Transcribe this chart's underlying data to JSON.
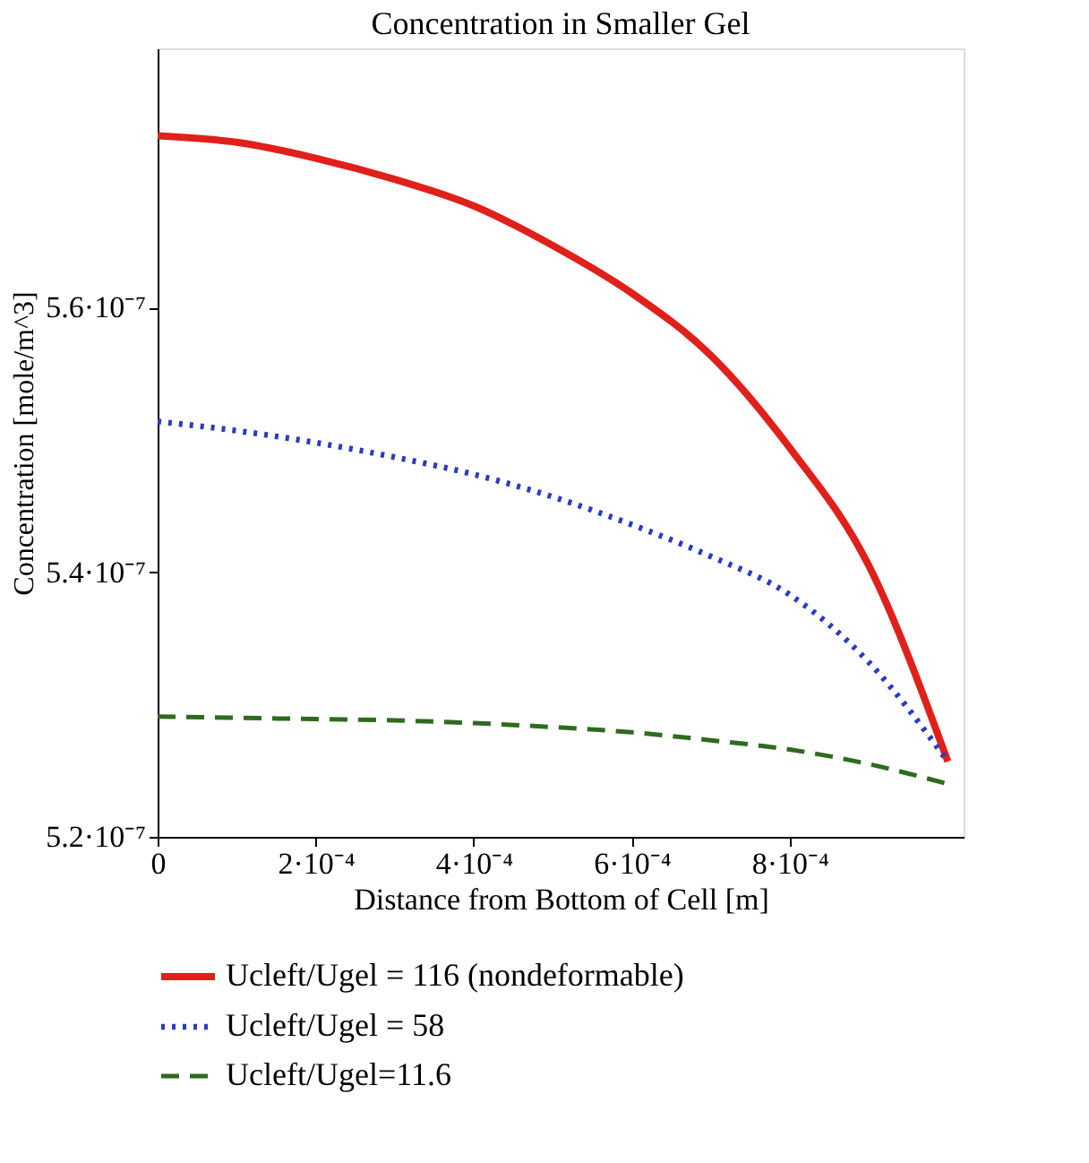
{
  "chart_data": {
    "type": "line",
    "title": "Concentration in Smaller Gel",
    "xlabel": "Distance from Bottom of Cell [m]",
    "ylabel": "Concentration [mole/m^3]",
    "xlim": [
      0,
      0.00102
    ],
    "ylim": [
      5.2e-07,
      5.796e-07
    ],
    "xticks": [
      0,
      {
        "value": 0.0002,
        "label": "2·10⁻⁴"
      },
      {
        "value": 0.0004,
        "label": "4·10⁻⁴"
      },
      {
        "value": 0.0006,
        "label": "6·10⁻⁴"
      },
      {
        "value": 0.0008,
        "label": "8·10⁻⁴"
      }
    ],
    "yticks": [
      {
        "value": 5.2e-07,
        "label": "5.2·10⁻⁷"
      },
      {
        "value": 5.4e-07,
        "label": "5.4·10⁻⁷"
      },
      {
        "value": 5.6e-07,
        "label": "5.6·10⁻⁷"
      }
    ],
    "x": [
      0,
      0.0001,
      0.0002,
      0.0003,
      0.0004,
      0.0005,
      0.0006,
      0.0007,
      0.0008,
      0.0009,
      0.001
    ],
    "series": [
      {
        "name": "Ucleft/Ugel = 116 (nondeformable)",
        "color": "#e0201b",
        "line_style": "solid",
        "values": [
          5.73e-07,
          5.725e-07,
          5.713e-07,
          5.697e-07,
          5.677e-07,
          5.647e-07,
          5.611e-07,
          5.564e-07,
          5.494e-07,
          5.405e-07,
          5.257e-07
        ]
      },
      {
        "name": "Ucleft/Ugel = 58",
        "color": "#2a3cc0",
        "line_style": "dotted",
        "values": [
          5.514e-07,
          5.507e-07,
          5.498e-07,
          5.487e-07,
          5.474e-07,
          5.457e-07,
          5.436e-07,
          5.412e-07,
          5.383e-07,
          5.332e-07,
          5.257e-07
        ]
      },
      {
        "name": "Ucleft/Ugel=11.6",
        "color": "#2e6b1e",
        "line_style": "dashed",
        "values": [
          5.291e-07,
          5.29e-07,
          5.289e-07,
          5.288e-07,
          5.286e-07,
          5.283e-07,
          5.279e-07,
          5.273e-07,
          5.266e-07,
          5.255e-07,
          5.24e-07
        ]
      }
    ],
    "grid": false,
    "legend": "bottom",
    "marker": "none"
  }
}
